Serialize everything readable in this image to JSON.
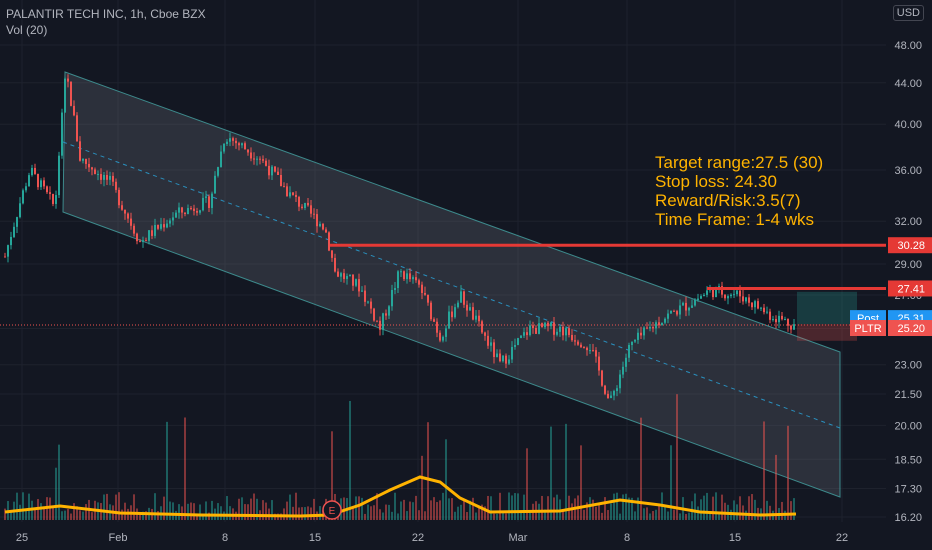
{
  "header": {
    "symbol_line": "PALANTIR TECH INC, 1h, Cboe BZX",
    "volume_label": "Vol (20)"
  },
  "currency_button": "USD",
  "annotation": {
    "lines": [
      "Target range:27.5 (30)",
      "Stop loss: 24.30",
      "Reward/Risk:3.5(7)",
      "Time Frame: 1-4 wks"
    ]
  },
  "colors": {
    "bg": "#131722",
    "up": "#26a69a",
    "down": "#ef5350",
    "level": "#e53935",
    "text_accent": "#ffb300",
    "volume_ma": "#ffb300",
    "post": "#2196f3"
  },
  "chart_data": {
    "type": "candlestick",
    "y_scale": "log",
    "ylim": [
      15.9,
      52
    ],
    "y_ticks": [
      "48.00",
      "44.00",
      "40.00",
      "36.00",
      "32.00",
      "29.00",
      "27.00",
      "25.00",
      "23.00",
      "21.50",
      "20.00",
      "18.50",
      "17.30",
      "16.20"
    ],
    "x_ticks": [
      "25",
      "Feb",
      "8",
      "15",
      "22",
      "Mar",
      "8",
      "15",
      "22"
    ],
    "horizontal_levels": [
      {
        "label": "30.28",
        "value": 30.28
      },
      {
        "label": "27.41",
        "value": 27.41
      }
    ],
    "price_tags": [
      {
        "name": "Post",
        "label": "25.31",
        "value": 25.31
      },
      {
        "name": "PLTR",
        "label": "25.20",
        "value": 25.2
      }
    ],
    "price_approx": [
      [
        "25",
        29.5
      ],
      [
        "25",
        35.0
      ],
      [
        "Feb",
        36.0
      ],
      [
        "Feb",
        44.5
      ],
      [
        "Feb",
        36.5
      ],
      [
        "8",
        31.0
      ],
      [
        "8",
        33.0
      ],
      [
        "8",
        32.0
      ],
      [
        "8",
        39.0
      ],
      [
        "15",
        37.5
      ],
      [
        "15",
        31.5
      ],
      [
        "15",
        28.0
      ],
      [
        "22",
        29.5
      ],
      [
        "22",
        27.0
      ],
      [
        "22",
        25.5
      ],
      [
        "Mar",
        24.5
      ],
      [
        "Mar",
        25.0
      ],
      [
        "Mar",
        24.0
      ],
      [
        "8",
        21.0
      ],
      [
        "8",
        24.5
      ],
      [
        "8",
        25.5
      ],
      [
        "15",
        27.0
      ],
      [
        "15",
        26.5
      ],
      [
        "15",
        25.2
      ]
    ],
    "volume_marker": "E"
  }
}
